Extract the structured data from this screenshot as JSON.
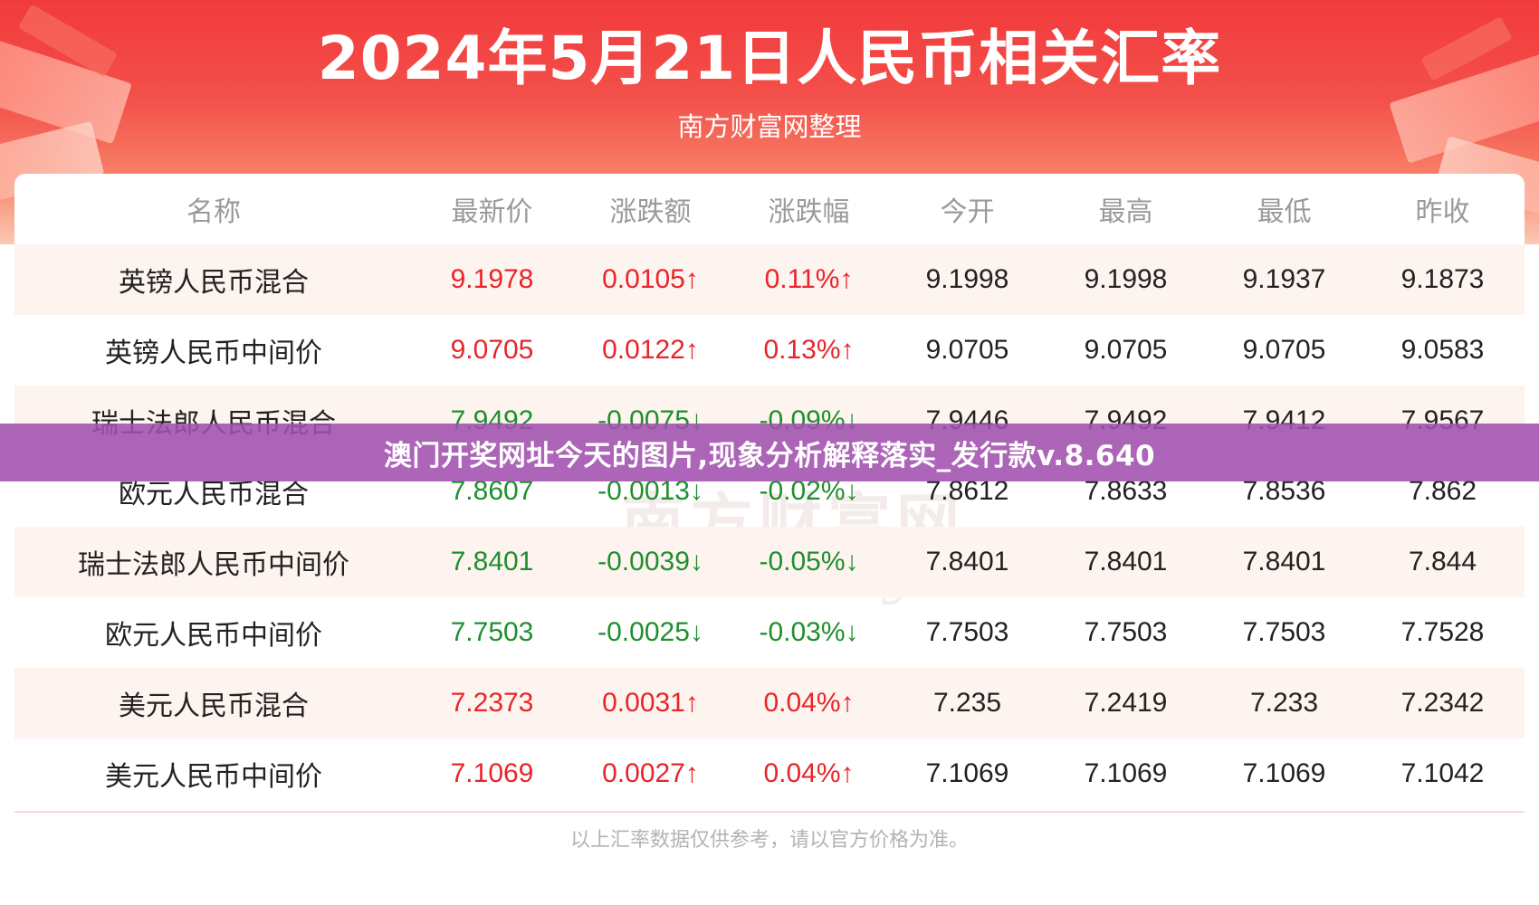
{
  "banner": {
    "title": "2024年5月21日人民币相关汇率",
    "subtitle": "南方财富网整理"
  },
  "table": {
    "headers": [
      "名称",
      "最新价",
      "涨跌额",
      "涨跌幅",
      "今开",
      "最高",
      "最低",
      "昨收"
    ],
    "rows": [
      {
        "name": "英镑人民币混合",
        "latest": "9.1978",
        "change": "0.0105↑",
        "pct": "0.11%↑",
        "open": "9.1998",
        "high": "9.1998",
        "low": "9.1937",
        "prev": "9.1873",
        "trend": "up"
      },
      {
        "name": "英镑人民币中间价",
        "latest": "9.0705",
        "change": "0.0122↑",
        "pct": "0.13%↑",
        "open": "9.0705",
        "high": "9.0705",
        "low": "9.0705",
        "prev": "9.0583",
        "trend": "up"
      },
      {
        "name": "瑞士法郎人民币混合",
        "latest": "7.9492",
        "change": "-0.0075↓",
        "pct": "-0.09%↓",
        "open": "7.9446",
        "high": "7.9492",
        "low": "7.9412",
        "prev": "7.9567",
        "trend": "down"
      },
      {
        "name": "欧元人民币混合",
        "latest": "7.8607",
        "change": "-0.0013↓",
        "pct": "-0.02%↓",
        "open": "7.8612",
        "high": "7.8633",
        "low": "7.8536",
        "prev": "7.862",
        "trend": "down"
      },
      {
        "name": "瑞士法郎人民币中间价",
        "latest": "7.8401",
        "change": "-0.0039↓",
        "pct": "-0.05%↓",
        "open": "7.8401",
        "high": "7.8401",
        "low": "7.8401",
        "prev": "7.844",
        "trend": "down"
      },
      {
        "name": "欧元人民币中间价",
        "latest": "7.7503",
        "change": "-0.0025↓",
        "pct": "-0.03%↓",
        "open": "7.7503",
        "high": "7.7503",
        "low": "7.7503",
        "prev": "7.7528",
        "trend": "down"
      },
      {
        "name": "美元人民币混合",
        "latest": "7.2373",
        "change": "0.0031↑",
        "pct": "0.04%↑",
        "open": "7.235",
        "high": "7.2419",
        "low": "7.233",
        "prev": "7.2342",
        "trend": "up"
      },
      {
        "name": "美元人民币中间价",
        "latest": "7.1069",
        "change": "0.0027↑",
        "pct": "0.04%↑",
        "open": "7.1069",
        "high": "7.1069",
        "low": "7.1069",
        "prev": "7.1042",
        "trend": "up"
      }
    ]
  },
  "watermark": {
    "cn": "南方财富网",
    "en": "Southmoney.com"
  },
  "footnote": "以上汇率数据仅供参考，请以官方价格为准。",
  "overlay": {
    "text": "澳门开奖网址今天的图片,现象分析解释落实_发行款v.8.640"
  },
  "colors": {
    "up": "#e8252b",
    "down": "#1f8f2e",
    "banner": "#f23a3c",
    "overlay": "#a050af"
  }
}
